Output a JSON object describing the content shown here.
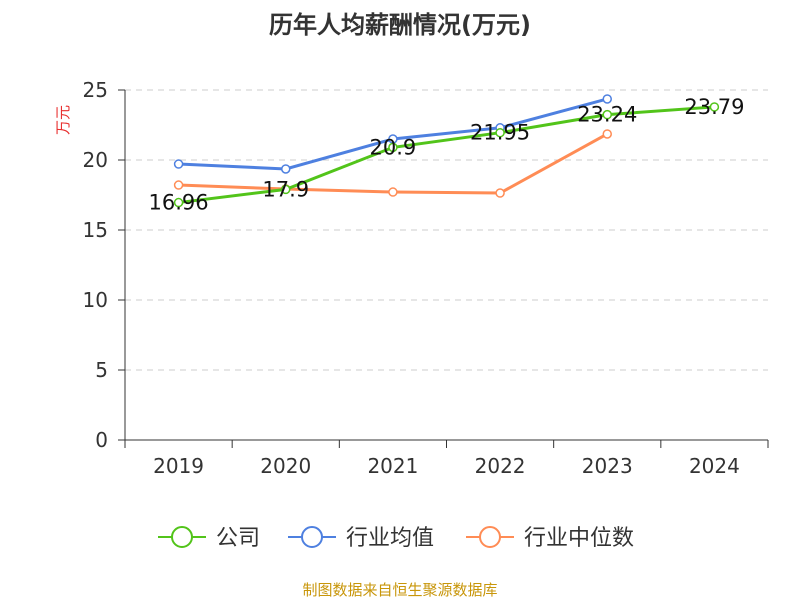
{
  "chart_data": {
    "type": "line",
    "title": "历年人均薪酬情况(万元)",
    "ylabel": "万元",
    "xlabel": "",
    "categories": [
      "2019",
      "2020",
      "2021",
      "2022",
      "2023",
      "2024"
    ],
    "ylim": [
      0,
      25
    ],
    "yticks": [
      0,
      5,
      10,
      15,
      20,
      25
    ],
    "grid": true,
    "legend_position": "bottom",
    "series": [
      {
        "name": "公司",
        "color": "#52c41a",
        "values": [
          16.96,
          17.9,
          20.9,
          21.95,
          23.24,
          23.79
        ],
        "labels": [
          "16.96",
          "17.9",
          "20.9",
          "21.95",
          "23.24",
          "23.79"
        ]
      },
      {
        "name": "行业均值",
        "color": "#4e80e0",
        "values": [
          19.71,
          19.36,
          21.5,
          22.3,
          24.36,
          null
        ]
      },
      {
        "name": "行业中位数",
        "color": "#ff8c55",
        "values": [
          18.21,
          17.93,
          17.71,
          17.64,
          21.86,
          null
        ]
      }
    ],
    "source": "制图数据来自恒生聚源数据库"
  }
}
